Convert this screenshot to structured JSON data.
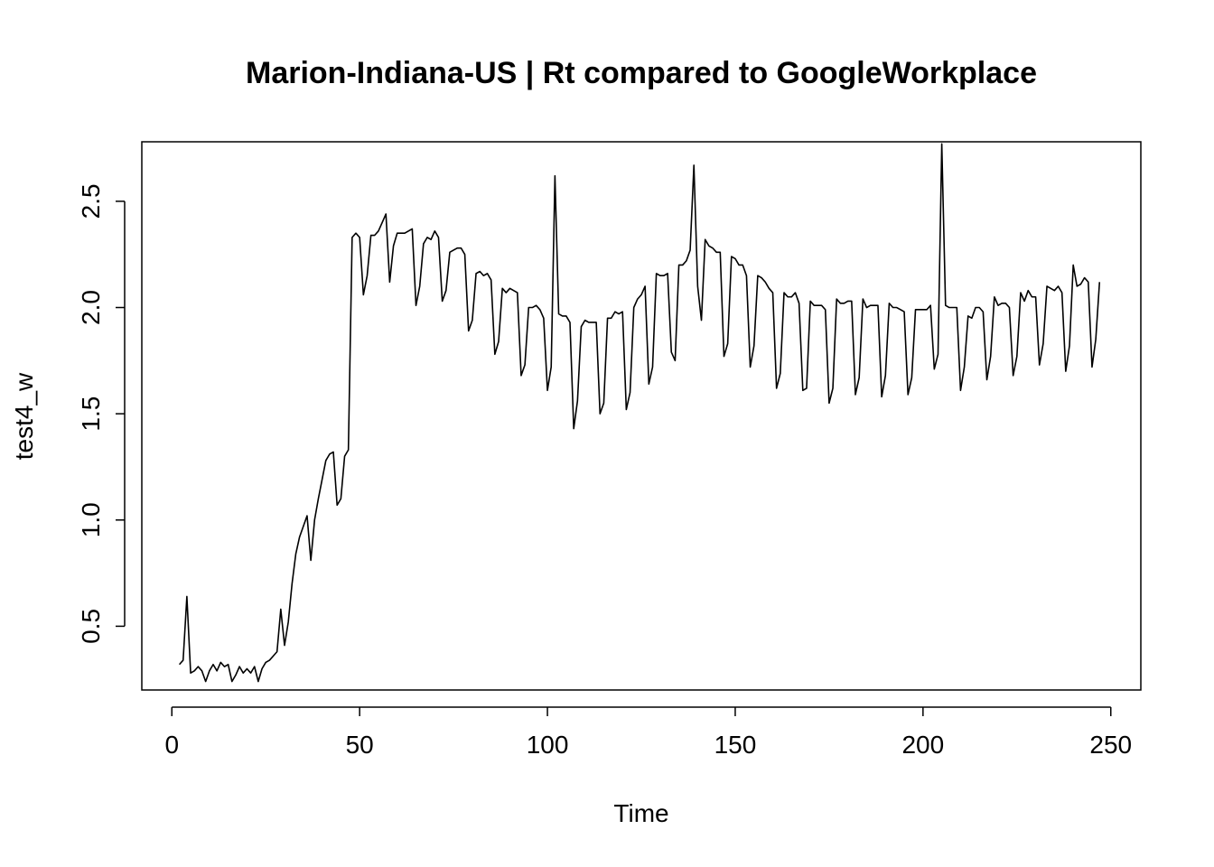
{
  "chart_data": {
    "type": "line",
    "title": "Marion-Indiana-US | Rt compared to GoogleWorkplace",
    "xlabel": "Time",
    "ylabel": "test4_w",
    "xlim": [
      -8,
      258
    ],
    "ylim": [
      0.2,
      2.78
    ],
    "x_ticks": [
      0,
      50,
      100,
      150,
      200,
      250
    ],
    "y_ticks": [
      0.5,
      1.0,
      1.5,
      2.0,
      2.5
    ],
    "x_tick_labels": [
      "0",
      "50",
      "100",
      "150",
      "200",
      "250"
    ],
    "y_tick_labels": [
      "0.5",
      "1.0",
      "1.5",
      "2.0",
      "2.5"
    ],
    "grid": false,
    "legend": "none",
    "line_color": "#000000",
    "series": [
      {
        "x_start": 2,
        "x_step": 1,
        "values": [
          0.32,
          0.34,
          0.64,
          0.28,
          0.29,
          0.31,
          0.29,
          0.24,
          0.29,
          0.32,
          0.29,
          0.33,
          0.31,
          0.32,
          0.24,
          0.27,
          0.31,
          0.28,
          0.3,
          0.28,
          0.31,
          0.24,
          0.3,
          0.33,
          0.34,
          0.36,
          0.38,
          0.58,
          0.41,
          0.52,
          0.7,
          0.84,
          0.92,
          0.97,
          1.02,
          0.81,
          1.0,
          1.1,
          1.19,
          1.28,
          1.31,
          1.32,
          1.07,
          1.1,
          1.3,
          1.33,
          2.33,
          2.35,
          2.33,
          2.06,
          2.15,
          2.34,
          2.34,
          2.36,
          2.4,
          2.44,
          2.12,
          2.29,
          2.35,
          2.35,
          2.35,
          2.36,
          2.37,
          2.01,
          2.1,
          2.3,
          2.33,
          2.32,
          2.36,
          2.33,
          2.03,
          2.08,
          2.26,
          2.27,
          2.28,
          2.28,
          2.25,
          1.89,
          1.94,
          2.16,
          2.17,
          2.15,
          2.16,
          2.13,
          1.78,
          1.84,
          2.09,
          2.07,
          2.09,
          2.08,
          2.07,
          1.68,
          1.73,
          2.0,
          2.0,
          2.01,
          1.99,
          1.95,
          1.61,
          1.72,
          2.62,
          1.97,
          1.96,
          1.96,
          1.93,
          1.43,
          1.56,
          1.91,
          1.94,
          1.93,
          1.93,
          1.93,
          1.5,
          1.55,
          1.95,
          1.95,
          1.98,
          1.97,
          1.98,
          1.52,
          1.6,
          2.0,
          2.04,
          2.06,
          2.1,
          1.64,
          1.72,
          2.16,
          2.15,
          2.15,
          2.16,
          1.79,
          1.75,
          2.2,
          2.2,
          2.22,
          2.27,
          2.67,
          2.1,
          1.94,
          2.32,
          2.29,
          2.28,
          2.26,
          2.26,
          1.77,
          1.83,
          2.24,
          2.23,
          2.2,
          2.2,
          2.15,
          1.72,
          1.82,
          2.15,
          2.14,
          2.12,
          2.09,
          2.07,
          1.62,
          1.69,
          2.07,
          2.05,
          2.05,
          2.07,
          2.02,
          1.61,
          1.62,
          2.03,
          2.01,
          2.01,
          2.01,
          1.99,
          1.55,
          1.62,
          2.04,
          2.02,
          2.02,
          2.03,
          2.03,
          1.59,
          1.67,
          2.04,
          2.0,
          2.01,
          2.01,
          2.01,
          1.58,
          1.68,
          2.02,
          2.0,
          2.0,
          1.99,
          1.98,
          1.59,
          1.67,
          1.99,
          1.99,
          1.99,
          1.99,
          2.01,
          1.71,
          1.78,
          2.77,
          2.01,
          2.0,
          2.0,
          2.0,
          1.61,
          1.72,
          1.96,
          1.95,
          2.0,
          2.0,
          1.98,
          1.66,
          1.77,
          2.05,
          2.01,
          2.02,
          2.02,
          2.0,
          1.68,
          1.77,
          2.07,
          2.03,
          2.08,
          2.05,
          2.05,
          1.73,
          1.83,
          2.1,
          2.09,
          2.08,
          2.1,
          2.07,
          1.7,
          1.82,
          2.2,
          2.1,
          2.11,
          2.14,
          2.12,
          1.72,
          1.85,
          2.12
        ]
      }
    ]
  }
}
